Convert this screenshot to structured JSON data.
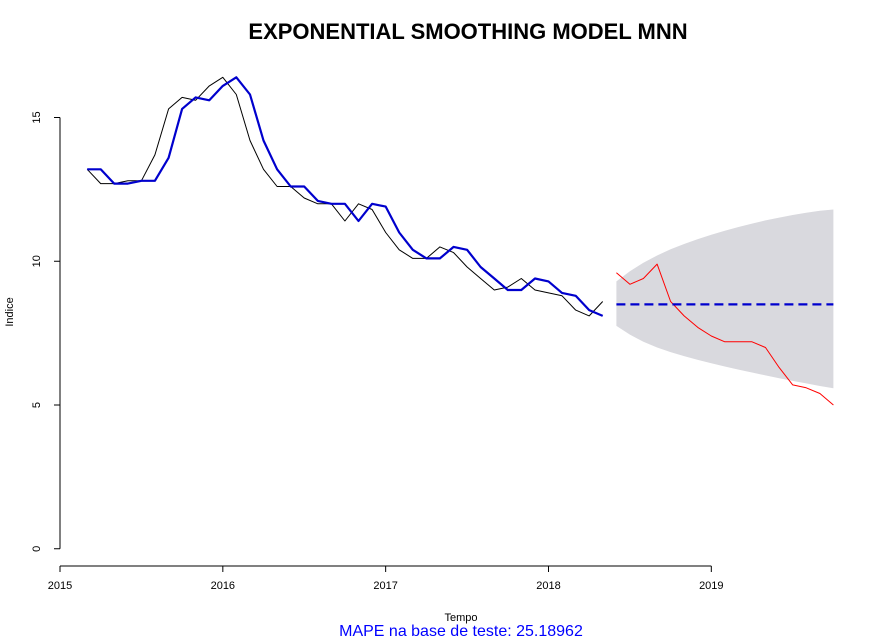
{
  "chart_data": {
    "type": "line",
    "title": "EXPONENTIAL SMOOTHING MODEL MNN",
    "xlabel": "Tempo",
    "ylabel": "Indice",
    "xlim": [
      2015.0,
      2019.95
    ],
    "ylim": [
      -0.6,
      17.0
    ],
    "x_ticks": [
      2015,
      2016,
      2017,
      2018,
      2019
    ],
    "x_tick_labels": [
      "2015",
      "2016",
      "2017",
      "2018",
      "2019"
    ],
    "y_ticks": [
      0,
      5,
      10,
      15
    ],
    "y_tick_labels": [
      "0",
      "5",
      "10",
      "15"
    ],
    "grid": false,
    "footer_text": "MAPE na base de teste:  25.18962",
    "colors": {
      "observed": "#000000",
      "fitted": "#0000CD",
      "test": "#FF0000",
      "forecast": "#0000CD",
      "interval": "#D9D9DE",
      "footer": "#0000FF"
    },
    "series": [
      {
        "x": [
          2015.167,
          2015.25,
          2015.333,
          2015.417,
          2015.5,
          2015.583,
          2015.667,
          2015.75,
          2015.833,
          2015.917,
          2016.0,
          2016.083,
          2016.167,
          2016.25,
          2016.333,
          2016.417,
          2016.5,
          2016.583,
          2016.667,
          2016.75,
          2016.833,
          2016.917,
          2017.0,
          2017.083,
          2017.167,
          2017.25,
          2017.333,
          2017.417,
          2017.5,
          2017.583,
          2017.667,
          2017.75,
          2017.833,
          2017.917,
          2018.0,
          2018.083,
          2018.167,
          2018.25,
          2018.333
        ],
        "values": [
          13.2,
          12.7,
          12.7,
          12.8,
          12.8,
          13.7,
          15.3,
          15.7,
          15.6,
          16.1,
          16.4,
          15.8,
          14.2,
          13.2,
          12.6,
          12.6,
          12.2,
          12.0,
          12.0,
          11.4,
          12.0,
          11.8,
          11.0,
          10.4,
          10.1,
          10.1,
          10.5,
          10.3,
          9.8,
          9.4,
          9.0,
          9.1,
          9.4,
          9.0,
          8.9,
          8.8,
          8.3,
          8.1,
          8.6
        ]
      },
      {
        "x": [
          2015.167,
          2015.25,
          2015.333,
          2015.417,
          2015.5,
          2015.583,
          2015.667,
          2015.75,
          2015.833,
          2015.917,
          2016.0,
          2016.083,
          2016.167,
          2016.25,
          2016.333,
          2016.417,
          2016.5,
          2016.583,
          2016.667,
          2016.75,
          2016.833,
          2016.917,
          2017.0,
          2017.083,
          2017.167,
          2017.25,
          2017.333,
          2017.417,
          2017.5,
          2017.583,
          2017.667,
          2017.75,
          2017.833,
          2017.917,
          2018.0,
          2018.083,
          2018.167,
          2018.25,
          2018.333
        ],
        "values": [
          13.2,
          13.2,
          12.7,
          12.7,
          12.8,
          12.8,
          13.6,
          15.3,
          15.7,
          15.6,
          16.1,
          16.4,
          15.8,
          14.2,
          13.2,
          12.6,
          12.6,
          12.1,
          12.0,
          12.0,
          11.4,
          12.0,
          11.9,
          11.0,
          10.4,
          10.1,
          10.1,
          10.5,
          10.4,
          9.8,
          9.4,
          9.0,
          9.0,
          9.4,
          9.3,
          8.9,
          8.8,
          8.3,
          8.1
        ]
      },
      {
        "x": [
          2018.417,
          2018.5,
          2018.583,
          2018.667,
          2018.75,
          2018.833,
          2018.917,
          2019.0,
          2019.083,
          2019.167,
          2019.25,
          2019.333,
          2019.417,
          2019.5,
          2019.583,
          2019.667,
          2019.75
        ],
        "values": [
          9.6,
          9.2,
          9.4,
          9.9,
          8.6,
          8.1,
          7.7,
          7.4,
          7.2,
          7.2,
          7.2,
          7.0,
          6.3,
          5.7,
          5.6,
          5.4,
          5.0
        ]
      },
      {
        "x": [
          2018.417,
          2019.75
        ],
        "values": [
          8.5,
          8.5
        ]
      },
      {
        "type": "area",
        "x": [
          2018.417,
          2018.5,
          2018.583,
          2018.667,
          2018.75,
          2018.833,
          2018.917,
          2019.0,
          2019.083,
          2019.167,
          2019.25,
          2019.333,
          2019.417,
          2019.5,
          2019.583,
          2019.667,
          2019.75
        ],
        "lower": [
          7.75,
          7.45,
          7.2,
          7.0,
          6.84,
          6.7,
          6.57,
          6.45,
          6.34,
          6.23,
          6.13,
          6.03,
          5.93,
          5.84,
          5.75,
          5.66,
          5.58
        ],
        "upper": [
          9.3,
          9.65,
          9.95,
          10.2,
          10.42,
          10.6,
          10.77,
          10.92,
          11.06,
          11.19,
          11.31,
          11.42,
          11.52,
          11.61,
          11.69,
          11.76,
          11.8
        ]
      }
    ]
  }
}
